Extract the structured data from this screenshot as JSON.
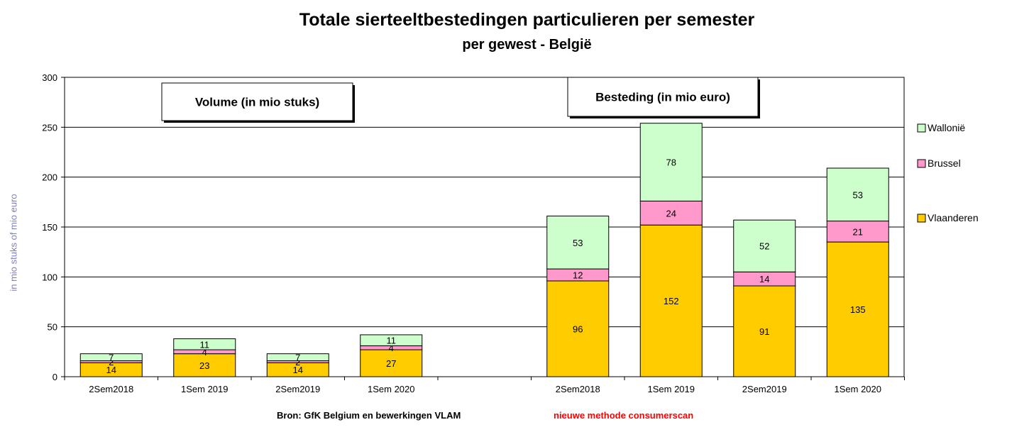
{
  "chart_data": {
    "type": "bar",
    "stacked": true,
    "title": "Totale sierteeltbestedingen particulieren per semester",
    "subtitle": "per gewest - België",
    "ylabel": "in mio stuks of mio euro",
    "ylim": [
      0,
      300
    ],
    "yticks": [
      0,
      50,
      100,
      150,
      200,
      250,
      300
    ],
    "grid": true,
    "legend_position": "right",
    "groups": [
      {
        "label": "Volume (in mio stuks)",
        "categories": [
          "2Sem2018",
          "1Sem 2019",
          "2Sem2019",
          "1Sem 2020"
        ],
        "series": [
          {
            "name": "Vlaanderen",
            "color": "#ffcc00",
            "values": [
              14,
              23,
              14,
              27
            ]
          },
          {
            "name": "Brussel",
            "color": "#ff99cc",
            "values": [
              2,
              4,
              2,
              4
            ]
          },
          {
            "name": "Wallonië",
            "color": "#ccffcc",
            "values": [
              7,
              11,
              7,
              11
            ]
          }
        ],
        "value_labels": [
          [
            "14",
            "23",
            "14",
            "27"
          ],
          [
            "2",
            "4",
            "2",
            "4"
          ],
          [
            "7",
            "11",
            "7",
            "11"
          ]
        ]
      },
      {
        "label": "Besteding (in mio euro)",
        "categories": [
          "2Sem2018",
          "1Sem 2019",
          "2Sem2019",
          "1Sem 2020"
        ],
        "series": [
          {
            "name": "Vlaanderen",
            "color": "#ffcc00",
            "values": [
              96,
              152,
              91,
              135
            ]
          },
          {
            "name": "Brussel",
            "color": "#ff99cc",
            "values": [
              12,
              24,
              14,
              21
            ]
          },
          {
            "name": "Wallonië",
            "color": "#ccffcc",
            "values": [
              53,
              78,
              52,
              53
            ]
          }
        ],
        "value_labels": [
          [
            "96",
            "152",
            "91",
            "135"
          ],
          [
            "12",
            "24",
            "14",
            "21"
          ],
          [
            "53",
            "78",
            "52",
            "53"
          ]
        ]
      }
    ],
    "legend": [
      {
        "name": "Wallonië",
        "color": "#ccffcc"
      },
      {
        "name": "Brussel",
        "color": "#ff99cc"
      },
      {
        "name": "Vlaanderen",
        "color": "#ffcc00"
      }
    ]
  },
  "footer": {
    "source": "Bron: GfK Belgium  en bewerkingen  VLAM",
    "note": "nieuwe methode consumerscan"
  }
}
